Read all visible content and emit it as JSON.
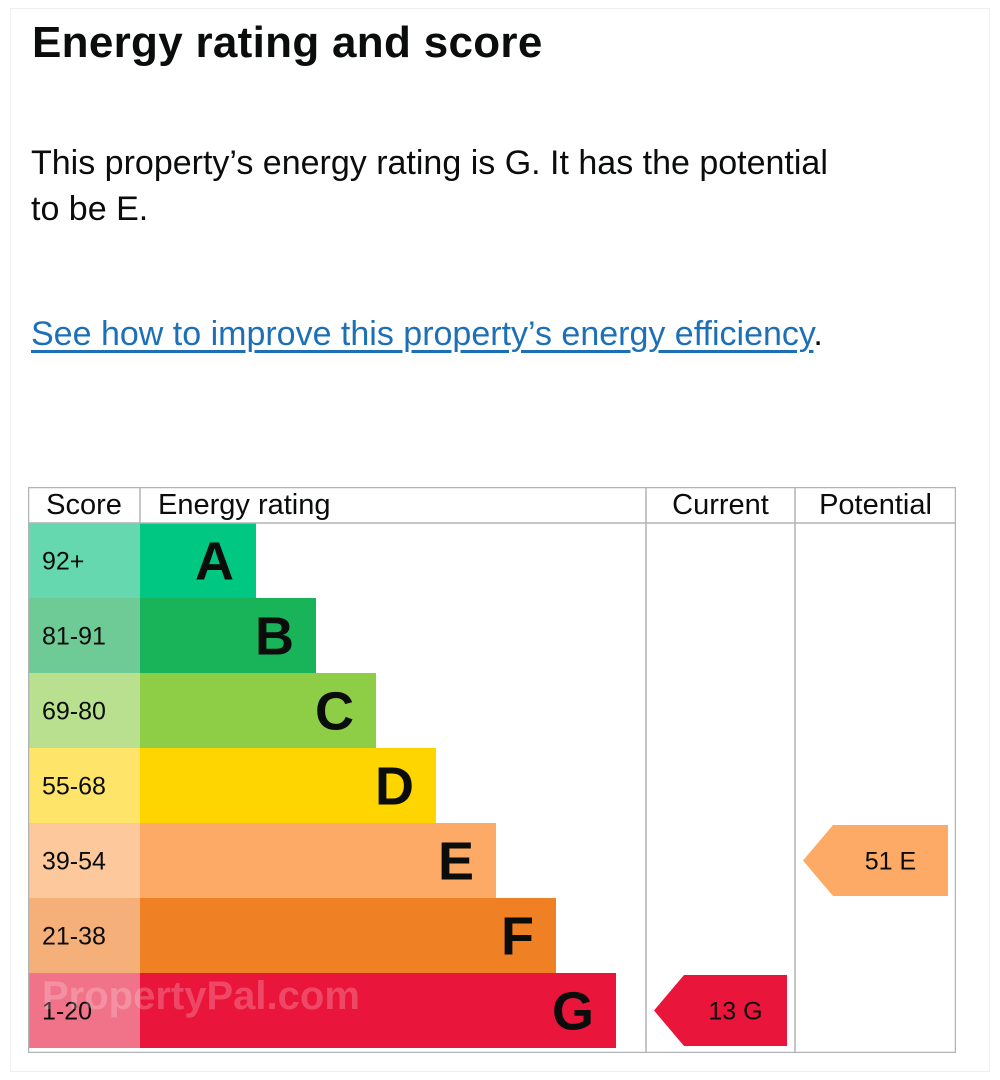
{
  "heading": "Energy rating and score",
  "summary": "This property’s energy rating is G. It has the potential to be E.",
  "improve_link": {
    "label": "See how to improve this property’s energy efficiency",
    "suffix": "."
  },
  "watermark": "PropertyPal.com",
  "chart_data": {
    "type": "table",
    "columns": [
      "Score",
      "Energy rating",
      "Current",
      "Potential"
    ],
    "bands": [
      {
        "score": "92+",
        "letter": "A",
        "color": "#00c781",
        "score_bg": "#66d8b0"
      },
      {
        "score": "81-91",
        "letter": "B",
        "color": "#19b459",
        "score_bg": "#6fcb96"
      },
      {
        "score": "69-80",
        "letter": "C",
        "color": "#8dce46",
        "score_bg": "#b9e08f"
      },
      {
        "score": "55-68",
        "letter": "D",
        "color": "#ffd500",
        "score_bg": "#ffe46a"
      },
      {
        "score": "39-54",
        "letter": "E",
        "color": "#fcaa65",
        "score_bg": "#fdc89b"
      },
      {
        "score": "21-38",
        "letter": "F",
        "color": "#ef8023",
        "score_bg": "#f5b07a"
      },
      {
        "score": "1-20",
        "letter": "G",
        "color": "#e9153b",
        "score_bg": "#f0738a"
      }
    ],
    "current": {
      "score": 13,
      "letter": "G",
      "label": "13  G",
      "color": "#e9153b"
    },
    "potential": {
      "score": 51,
      "letter": "E",
      "label": "51  E",
      "color": "#fcaa65"
    }
  }
}
